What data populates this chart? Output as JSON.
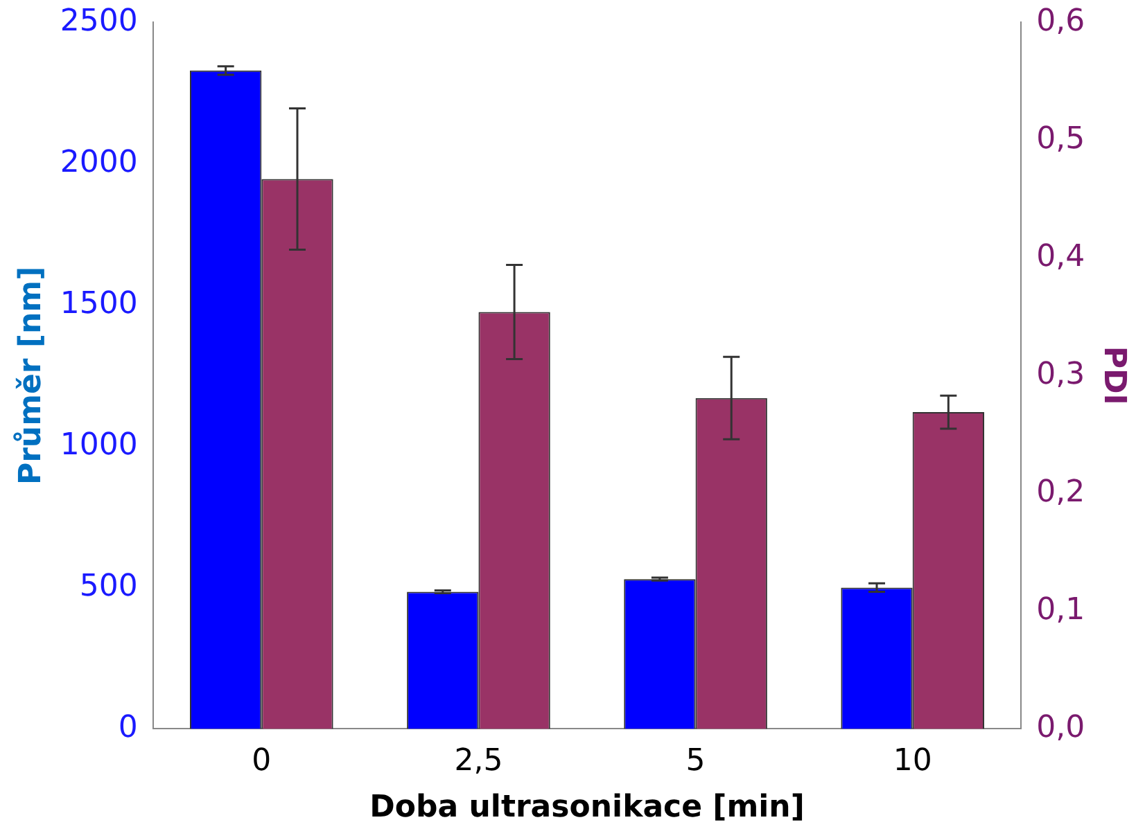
{
  "chart_data": {
    "type": "bar",
    "xlabel": "Doba ultrasonikace [min]",
    "ylabel": "Průměr [nm]",
    "y2label": "PDI",
    "categories": [
      "0",
      "2,5",
      "5",
      "10"
    ],
    "series": [
      {
        "color": "#0000ff",
        "values": [
          2330,
          485,
          530,
          500
        ],
        "errors": [
          15,
          5,
          5,
          15
        ]
      },
      {
        "color": "#993366",
        "axis": "y2",
        "values": [
          0.467,
          0.354,
          0.281,
          0.269
        ],
        "errors": [
          0.06,
          0.04,
          0.035,
          0.014
        ]
      }
    ],
    "ylim": [
      0,
      2500
    ],
    "yticks": [
      0,
      500,
      1000,
      1500,
      2000,
      2500
    ],
    "y2lim": [
      0,
      0.6
    ],
    "y2ticks": [
      {
        "value": 0,
        "label": "0,0"
      },
      {
        "value": 0.1,
        "label": "0,1"
      },
      {
        "value": 0.2,
        "label": "0,2"
      },
      {
        "value": 0.3,
        "label": "0,3"
      },
      {
        "value": 0.4,
        "label": "0,4"
      },
      {
        "value": 0.5,
        "label": "0,5"
      },
      {
        "value": 0.6,
        "label": "0,6"
      }
    ],
    "grid": false,
    "legend": false
  }
}
